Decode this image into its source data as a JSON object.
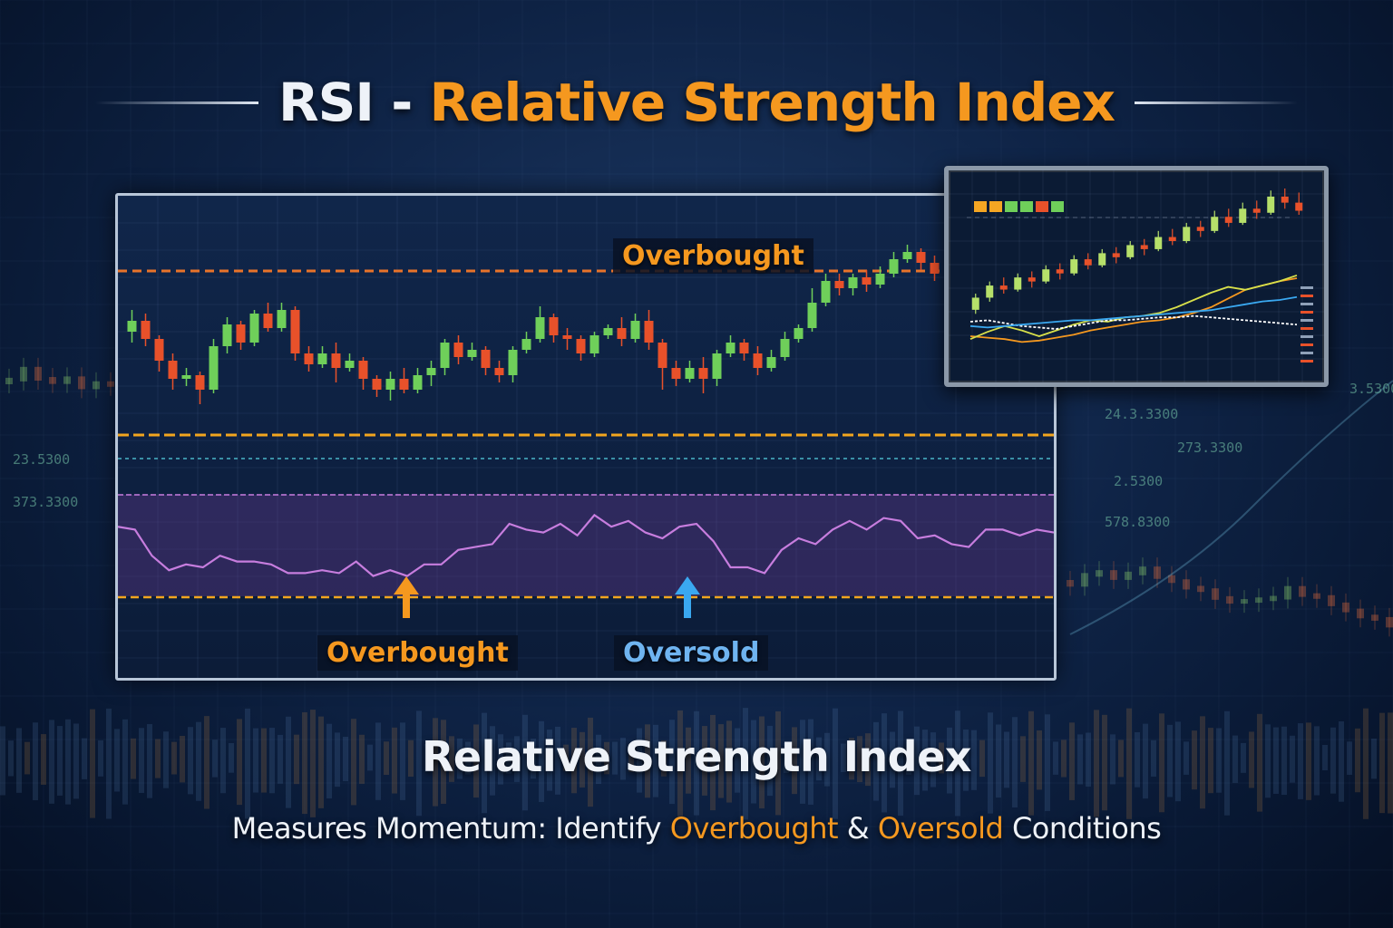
{
  "title": {
    "prefix": "RSI",
    "dash": "-",
    "main": "Relative Strength Index"
  },
  "labels": {
    "overbought_top": "Overbought",
    "overbought_bottom": "Overbought",
    "oversold": "Oversold"
  },
  "subtitle": {
    "heading": "Relative Strength Index",
    "line_start": "Measures Momentum: Identify ",
    "overbought": "Overbought",
    "amp": " & ",
    "oversold": "Oversold",
    "line_end": " Conditions"
  },
  "background_numbers": [
    "23.5300",
    "373.3300",
    "24.3.3300",
    "273.3300",
    "2.5300",
    "578.8300",
    "3.5300"
  ],
  "colors": {
    "accent_orange": "#f5981f",
    "oversold_blue": "#3aa8f0",
    "bull_green": "#6fcf5a",
    "bear_red": "#e8512a",
    "rsi_line": "#c77dde"
  },
  "chart_data": [
    {
      "type": "candlestick",
      "name": "price",
      "candles": [
        {
          "o": 50,
          "c": 53,
          "h": 56,
          "l": 47
        },
        {
          "o": 53,
          "c": 48,
          "h": 55,
          "l": 46
        },
        {
          "o": 48,
          "c": 42,
          "h": 49,
          "l": 39
        },
        {
          "o": 42,
          "c": 37,
          "h": 44,
          "l": 34
        },
        {
          "o": 37,
          "c": 38,
          "h": 40,
          "l": 35
        },
        {
          "o": 38,
          "c": 34,
          "h": 39,
          "l": 30
        },
        {
          "o": 34,
          "c": 46,
          "h": 48,
          "l": 33
        },
        {
          "o": 46,
          "c": 52,
          "h": 54,
          "l": 44
        },
        {
          "o": 52,
          "c": 47,
          "h": 53,
          "l": 45
        },
        {
          "o": 47,
          "c": 55,
          "h": 56,
          "l": 46
        },
        {
          "o": 55,
          "c": 51,
          "h": 58,
          "l": 50
        },
        {
          "o": 51,
          "c": 56,
          "h": 58,
          "l": 50
        },
        {
          "o": 56,
          "c": 44,
          "h": 57,
          "l": 42
        },
        {
          "o": 44,
          "c": 41,
          "h": 46,
          "l": 39
        },
        {
          "o": 41,
          "c": 44,
          "h": 46,
          "l": 40
        },
        {
          "o": 44,
          "c": 40,
          "h": 47,
          "l": 36
        },
        {
          "o": 40,
          "c": 42,
          "h": 44,
          "l": 39
        },
        {
          "o": 42,
          "c": 37,
          "h": 43,
          "l": 34
        },
        {
          "o": 37,
          "c": 34,
          "h": 38,
          "l": 32
        },
        {
          "o": 34,
          "c": 37,
          "h": 39,
          "l": 31
        },
        {
          "o": 37,
          "c": 34,
          "h": 40,
          "l": 33
        },
        {
          "o": 34,
          "c": 38,
          "h": 40,
          "l": 33
        },
        {
          "o": 38,
          "c": 40,
          "h": 42,
          "l": 35
        },
        {
          "o": 40,
          "c": 47,
          "h": 48,
          "l": 38
        },
        {
          "o": 47,
          "c": 43,
          "h": 49,
          "l": 41
        },
        {
          "o": 43,
          "c": 45,
          "h": 47,
          "l": 42
        },
        {
          "o": 45,
          "c": 40,
          "h": 46,
          "l": 38
        },
        {
          "o": 40,
          "c": 38,
          "h": 42,
          "l": 36
        },
        {
          "o": 38,
          "c": 45,
          "h": 46,
          "l": 36
        },
        {
          "o": 45,
          "c": 48,
          "h": 50,
          "l": 44
        },
        {
          "o": 48,
          "c": 54,
          "h": 57,
          "l": 47
        },
        {
          "o": 54,
          "c": 49,
          "h": 55,
          "l": 47
        },
        {
          "o": 49,
          "c": 48,
          "h": 51,
          "l": 45
        },
        {
          "o": 48,
          "c": 44,
          "h": 49,
          "l": 42
        },
        {
          "o": 44,
          "c": 49,
          "h": 50,
          "l": 43
        },
        {
          "o": 49,
          "c": 51,
          "h": 52,
          "l": 48
        },
        {
          "o": 51,
          "c": 48,
          "h": 54,
          "l": 46
        },
        {
          "o": 48,
          "c": 53,
          "h": 55,
          "l": 47
        },
        {
          "o": 53,
          "c": 47,
          "h": 56,
          "l": 45
        },
        {
          "o": 47,
          "c": 40,
          "h": 48,
          "l": 34
        },
        {
          "o": 40,
          "c": 37,
          "h": 42,
          "l": 35
        },
        {
          "o": 37,
          "c": 40,
          "h": 42,
          "l": 36
        },
        {
          "o": 40,
          "c": 37,
          "h": 43,
          "l": 33
        },
        {
          "o": 37,
          "c": 44,
          "h": 45,
          "l": 35
        },
        {
          "o": 44,
          "c": 47,
          "h": 49,
          "l": 43
        },
        {
          "o": 47,
          "c": 44,
          "h": 48,
          "l": 42
        },
        {
          "o": 44,
          "c": 40,
          "h": 46,
          "l": 38
        },
        {
          "o": 40,
          "c": 43,
          "h": 45,
          "l": 39
        },
        {
          "o": 43,
          "c": 48,
          "h": 50,
          "l": 42
        },
        {
          "o": 48,
          "c": 51,
          "h": 52,
          "l": 47
        },
        {
          "o": 51,
          "c": 58,
          "h": 62,
          "l": 50
        },
        {
          "o": 58,
          "c": 64,
          "h": 66,
          "l": 57
        },
        {
          "o": 64,
          "c": 62,
          "h": 66,
          "l": 60
        },
        {
          "o": 62,
          "c": 65,
          "h": 66,
          "l": 60
        },
        {
          "o": 65,
          "c": 63,
          "h": 67,
          "l": 61
        },
        {
          "o": 63,
          "c": 66,
          "h": 68,
          "l": 62
        },
        {
          "o": 66,
          "c": 70,
          "h": 72,
          "l": 65
        },
        {
          "o": 70,
          "c": 72,
          "h": 74,
          "l": 69
        },
        {
          "o": 72,
          "c": 69,
          "h": 73,
          "l": 67
        },
        {
          "o": 69,
          "c": 66,
          "h": 71,
          "l": 64
        }
      ]
    },
    {
      "type": "line",
      "name": "RSI",
      "values": [
        54,
        53,
        44,
        39,
        41,
        40,
        44,
        42,
        42,
        41,
        38,
        38,
        39,
        38,
        42,
        37,
        39,
        37,
        41,
        41,
        46,
        47,
        48,
        55,
        53,
        52,
        55,
        51,
        58,
        54,
        56,
        52,
        50,
        54,
        55,
        49,
        40,
        40,
        38,
        46,
        50,
        48,
        53,
        56,
        53,
        57,
        56,
        50,
        51,
        48,
        47,
        53,
        53,
        51,
        53,
        52
      ],
      "ylim": [
        0,
        100
      ]
    },
    {
      "type": "candlestick",
      "name": "inset-price",
      "candles": [
        {
          "o": 30,
          "c": 36,
          "h": 38,
          "l": 28
        },
        {
          "o": 36,
          "c": 42,
          "h": 44,
          "l": 34
        },
        {
          "o": 42,
          "c": 40,
          "h": 46,
          "l": 38
        },
        {
          "o": 40,
          "c": 46,
          "h": 48,
          "l": 39
        },
        {
          "o": 46,
          "c": 44,
          "h": 49,
          "l": 41
        },
        {
          "o": 44,
          "c": 50,
          "h": 52,
          "l": 43
        },
        {
          "o": 50,
          "c": 48,
          "h": 53,
          "l": 45
        },
        {
          "o": 48,
          "c": 55,
          "h": 57,
          "l": 47
        },
        {
          "o": 55,
          "c": 52,
          "h": 58,
          "l": 50
        },
        {
          "o": 52,
          "c": 58,
          "h": 60,
          "l": 51
        },
        {
          "o": 58,
          "c": 56,
          "h": 61,
          "l": 53
        },
        {
          "o": 56,
          "c": 62,
          "h": 64,
          "l": 55
        },
        {
          "o": 62,
          "c": 60,
          "h": 65,
          "l": 57
        },
        {
          "o": 60,
          "c": 66,
          "h": 69,
          "l": 59
        },
        {
          "o": 66,
          "c": 64,
          "h": 70,
          "l": 62
        },
        {
          "o": 64,
          "c": 71,
          "h": 73,
          "l": 63
        },
        {
          "o": 71,
          "c": 69,
          "h": 74,
          "l": 66
        },
        {
          "o": 69,
          "c": 76,
          "h": 79,
          "l": 68
        },
        {
          "o": 76,
          "c": 73,
          "h": 80,
          "l": 71
        },
        {
          "o": 73,
          "c": 80,
          "h": 83,
          "l": 72
        },
        {
          "o": 80,
          "c": 78,
          "h": 84,
          "l": 75
        },
        {
          "o": 78,
          "c": 86,
          "h": 89,
          "l": 77
        },
        {
          "o": 86,
          "c": 83,
          "h": 90,
          "l": 80
        },
        {
          "o": 83,
          "c": 79,
          "h": 88,
          "l": 77
        }
      ]
    },
    {
      "type": "line",
      "name": "inset-indicators",
      "series": [
        {
          "color": "#f5981f",
          "values": [
            20,
            19,
            18,
            16,
            17,
            19,
            21,
            24,
            26,
            28,
            30,
            31,
            33,
            36,
            40,
            46,
            52,
            55,
            58,
            60
          ]
        },
        {
          "color": "#d8e04a",
          "values": [
            18,
            23,
            27,
            24,
            20,
            24,
            28,
            31,
            30,
            33,
            34,
            36,
            40,
            45,
            50,
            54,
            52,
            55,
            58,
            62
          ]
        },
        {
          "color": "#ffffff",
          "values": [
            30,
            31,
            29,
            27,
            26,
            25,
            27,
            29,
            31,
            31,
            32,
            33,
            33,
            34,
            33,
            32,
            31,
            30,
            29,
            28
          ]
        },
        {
          "color": "#3aa8f0",
          "values": [
            27,
            26,
            27,
            28,
            29,
            30,
            31,
            31,
            32,
            33,
            34,
            35,
            36,
            37,
            38,
            40,
            42,
            44,
            45,
            47
          ]
        }
      ]
    }
  ]
}
